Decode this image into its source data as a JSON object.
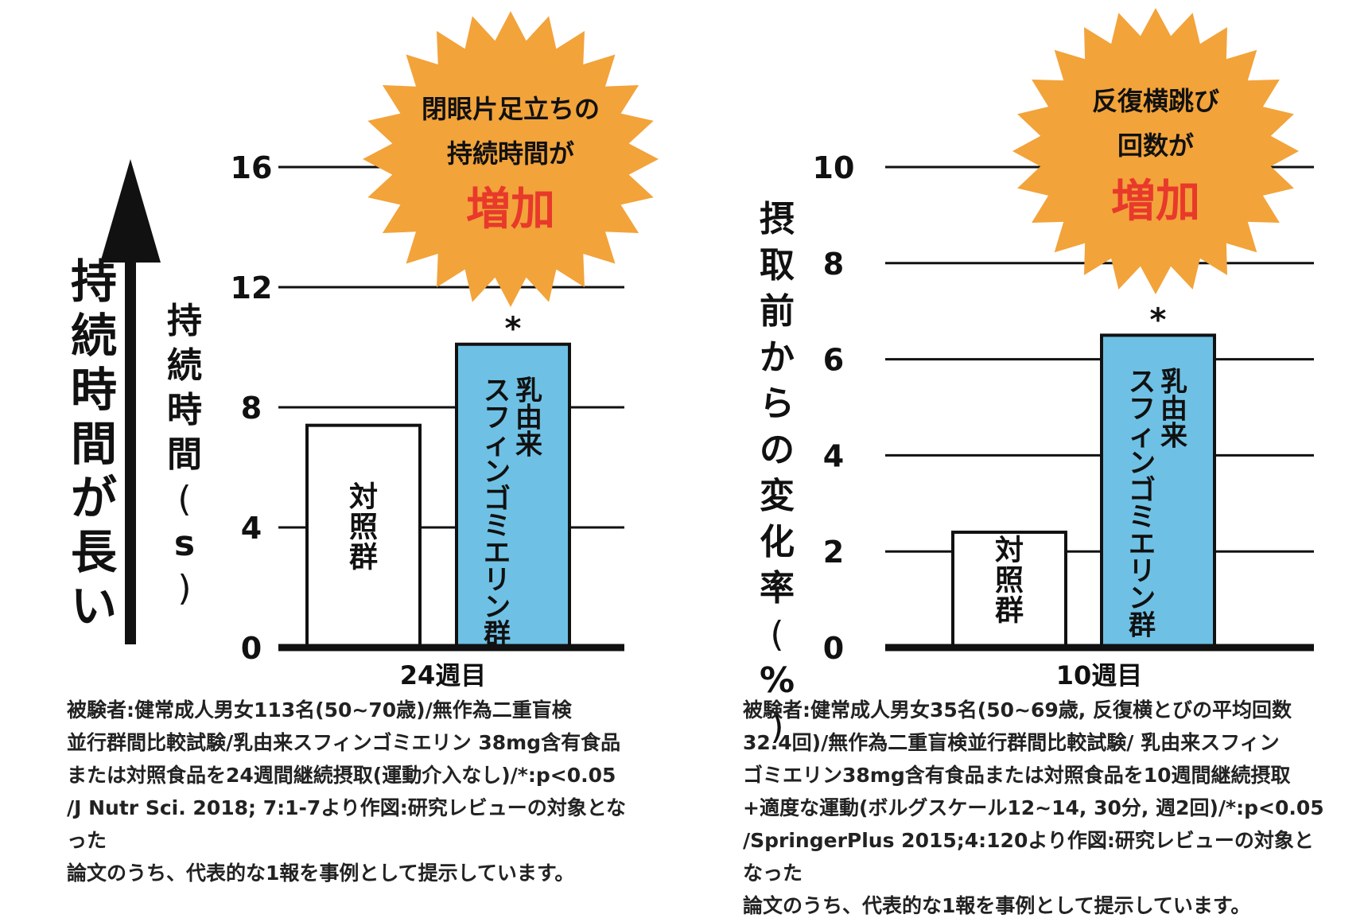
{
  "colors": {
    "bar_control": "#ffffff",
    "bar_treatment": "#6ec1e4",
    "burst": "#f2a33a",
    "accent_red": "#e8392b",
    "ink": "#111111"
  },
  "left_arrow_label": "持続時間が長い",
  "charts": [
    {
      "ylabel": "持続時間(s)",
      "yticks": [
        "0",
        "4",
        "8",
        "12",
        "16"
      ],
      "xlabel": "24週目",
      "burst_lines": [
        "閉眼片足立ちの",
        "持続時間が"
      ],
      "burst_emphasis": "増加",
      "bar_labels": [
        "対照群",
        "乳由来スフィンゴミエリン群"
      ],
      "asterisk": "*",
      "note": "被験者:健常成人男女113名(50~70歳)/無作為二重盲検\n並行群間比較試験/乳由来スフィンゴミエリン 38mg含有食品\nまたは対照食品を24週間継続摂取(運動介入なし)/*:p<0.05\n/J Nutr Sci. 2018; 7:1-7より作図:研究レビューの対象となった\n論文のうち、代表的な1報を事例として提示しています。"
    },
    {
      "ylabel": "摂取前からの変化率(%)",
      "yticks": [
        "0",
        "2",
        "4",
        "6",
        "8",
        "10"
      ],
      "xlabel": "10週目",
      "burst_lines": [
        "反復横跳び",
        "回数が"
      ],
      "burst_emphasis": "増加",
      "bar_labels": [
        "対照群",
        "乳由来スフィンゴミエリン群"
      ],
      "asterisk": "*",
      "note": "被験者:健常成人男女35名(50~69歳, 反復横とびの平均回数\n32.4回)/無作為二重盲検並行群間比較試験/ 乳由来スフィン\nゴミエリン38mg含有食品または対照食品を10週間継続摂取\n+適度な運動(ボルグスケール12~14, 30分, 週2回)/*:p<0.05\n/SpringerPlus 2015;4:120より作図:研究レビューの対象となった\n論文のうち、代表的な1報を事例として提示しています。"
    }
  ],
  "chart_data": [
    {
      "type": "bar",
      "categories": [
        "対照群",
        "乳由来スフィンゴミエリン群"
      ],
      "values": [
        7.4,
        10.1
      ],
      "xlabel": "24週目",
      "ylabel": "持続時間(s)",
      "ylim": [
        0,
        16
      ],
      "yticks": [
        0,
        4,
        8,
        12,
        16
      ],
      "grid": true,
      "significance": [
        false,
        true
      ]
    },
    {
      "type": "bar",
      "categories": [
        "対照群",
        "乳由来スフィンゴミエリン群"
      ],
      "values": [
        2.4,
        6.5
      ],
      "xlabel": "10週目",
      "ylabel": "摂取前からの変化率(%)",
      "ylim": [
        0,
        10
      ],
      "yticks": [
        0,
        2,
        4,
        6,
        8,
        10
      ],
      "grid": true,
      "significance": [
        false,
        true
      ]
    }
  ]
}
